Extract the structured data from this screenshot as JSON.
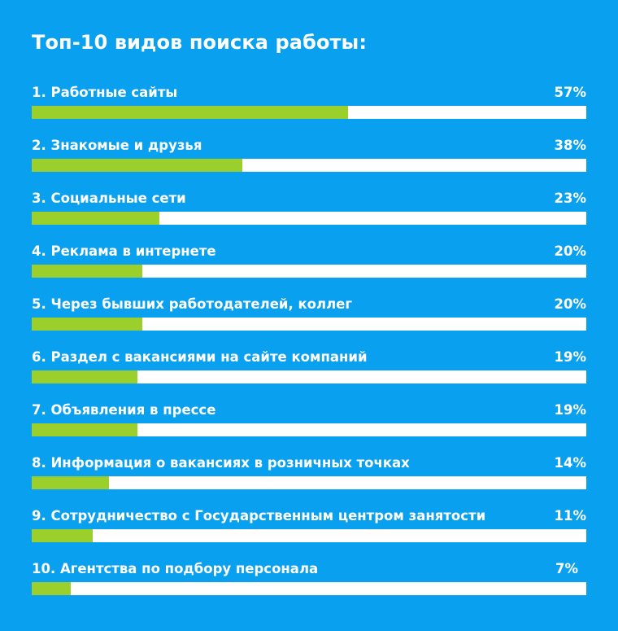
{
  "title": "Топ-10 видов поиска работы:",
  "colors": {
    "background": "#0aa0f0",
    "bar_fill": "#9bcf2b",
    "bar_track": "#ffffff",
    "text": "#ffffff"
  },
  "chart_data": {
    "type": "bar",
    "orientation": "horizontal",
    "title": "Топ-10 видов поиска работы:",
    "xlabel": "",
    "ylabel": "",
    "xlim": [
      0,
      100
    ],
    "unit": "%",
    "categories": [
      "1. Работные сайты",
      "2. Знакомые и друзья",
      "3. Социальные сети",
      "4. Реклама в интернете",
      "5. Через бывших работодателей, коллег",
      "6. Раздел с вакансиями на сайте компаний",
      "7. Объявления в прессе",
      "8. Информация о вакансиях в розничных точках",
      "9. Сотрудничество с Государственным центром занятости",
      "10. Агентства по подбору персонала"
    ],
    "values": [
      57,
      38,
      23,
      20,
      20,
      19,
      19,
      14,
      11,
      7
    ],
    "value_labels": [
      "57%",
      "38%",
      "23%",
      "20%",
      "20%",
      "19%",
      "19%",
      "14%",
      "11%",
      "7%"
    ]
  }
}
